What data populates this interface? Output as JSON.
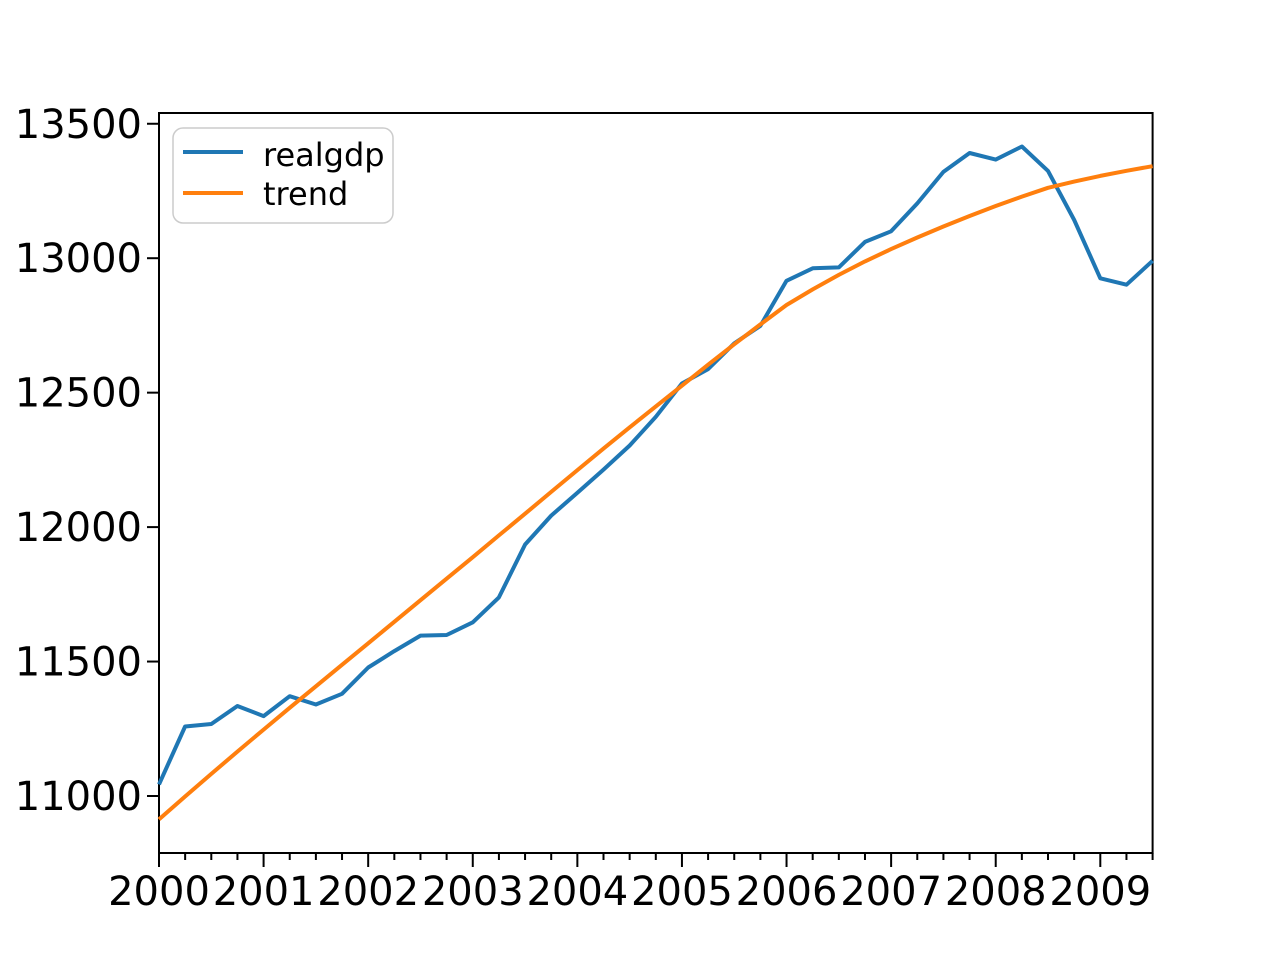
{
  "chart_data": {
    "type": "line",
    "title": "",
    "xlabel": "",
    "ylabel": "",
    "grid": false,
    "x_quarters": [
      "2000Q1",
      "2000Q2",
      "2000Q3",
      "2000Q4",
      "2001Q1",
      "2001Q2",
      "2001Q3",
      "2001Q4",
      "2002Q1",
      "2002Q2",
      "2002Q3",
      "2002Q4",
      "2003Q1",
      "2003Q2",
      "2003Q3",
      "2003Q4",
      "2004Q1",
      "2004Q2",
      "2004Q3",
      "2004Q4",
      "2005Q1",
      "2005Q2",
      "2005Q3",
      "2005Q4",
      "2006Q1",
      "2006Q2",
      "2006Q3",
      "2006Q4",
      "2007Q1",
      "2007Q2",
      "2007Q3",
      "2007Q4",
      "2008Q1",
      "2008Q2",
      "2008Q3",
      "2008Q4",
      "2009Q1",
      "2009Q2",
      "2009Q3"
    ],
    "series": [
      {
        "name": "realgdp",
        "color": "#1f77b4",
        "values": [
          11043.044,
          11258.454,
          11267.867,
          11334.544,
          11297.171,
          11371.251,
          11340.075,
          11380.128,
          11477.868,
          11538.77,
          11596.43,
          11598.824,
          11645.819,
          11738.706,
          11935.461,
          12042.817,
          12127.623,
          12213.818,
          12303.533,
          12410.282,
          12534.113,
          12587.535,
          12683.153,
          12748.699,
          12915.938,
          12962.462,
          12965.916,
          13060.679,
          13099.901,
          13203.977,
          13321.109,
          13391.249,
          13366.865,
          13415.266,
          13324.6,
          13141.92,
          12925.41,
          12901.504,
          12990.341
        ]
      },
      {
        "name": "trend",
        "color": "#ff7f0e",
        "values": [
          10913,
          10998,
          11082,
          11165,
          11247,
          11328,
          11408,
          11488,
          11568,
          11648,
          11728,
          11808,
          11888,
          11969,
          12050,
          12131,
          12212,
          12292,
          12371,
          12449,
          12526,
          12604,
          12680,
          12754,
          12826,
          12884,
          12938,
          12988,
          13034,
          13077,
          13118,
          13157,
          13194,
          13229,
          13262,
          13285,
          13306,
          13325,
          13342
        ]
      }
    ],
    "x_axis": {
      "major_tick_labels": [
        "2000",
        "2001",
        "2002",
        "2003",
        "2004",
        "2005",
        "2006",
        "2007",
        "2008",
        "2009"
      ],
      "major_tick_indices": [
        0,
        4,
        8,
        12,
        16,
        20,
        24,
        28,
        32,
        36
      ],
      "minor_ticks": "quarterly"
    },
    "y_axis": {
      "tick_labels": [
        "11000",
        "11500",
        "12000",
        "12500",
        "13000",
        "13500"
      ],
      "tick_values": [
        11000,
        11500,
        12000,
        12500,
        13000,
        13500
      ],
      "range": [
        10788,
        13540
      ]
    },
    "legend": {
      "position": "upper left",
      "entries": [
        "realgdp",
        "trend"
      ]
    }
  }
}
